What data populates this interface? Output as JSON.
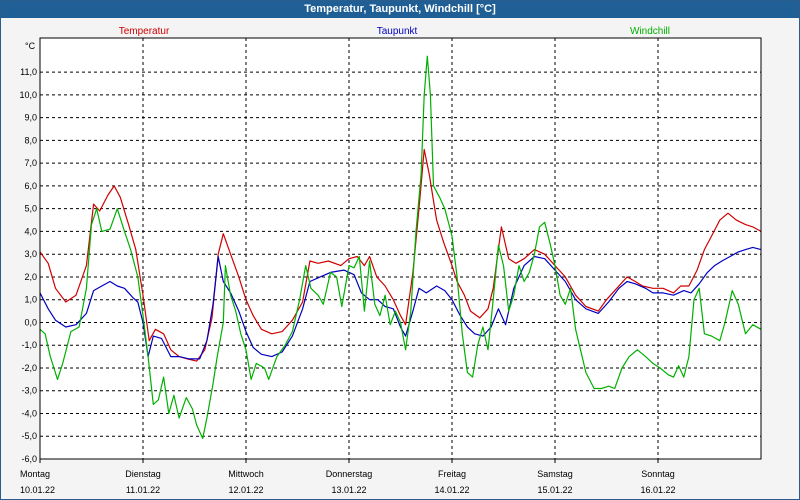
{
  "window": {
    "title": "Temperatur, Taupunkt, Windchill [°C]"
  },
  "chart_data": {
    "type": "line",
    "title": "Temperatur, Taupunkt, Windchill [°C]",
    "ylabel": "°C",
    "xlabel": "",
    "ylim": [
      -6.0,
      12.5
    ],
    "xlim": [
      0,
      7
    ],
    "grid": true,
    "y_ticks": [
      "-6,0",
      "-5,0",
      "-4,0",
      "-3,0",
      "-2,0",
      "-1,0",
      "0,0",
      "1,0",
      "2,0",
      "3,0",
      "4,0",
      "5,0",
      "6,0",
      "7,0",
      "8,0",
      "9,0",
      "10,0",
      "11,0"
    ],
    "y_tick_values": [
      -6,
      -5,
      -4,
      -3,
      -2,
      -1,
      0,
      1,
      2,
      3,
      4,
      5,
      6,
      7,
      8,
      9,
      10,
      11
    ],
    "x_ticks": [
      {
        "day": "Montag",
        "date": "10.01.22"
      },
      {
        "day": "Dienstag",
        "date": "11.01.22"
      },
      {
        "day": "Mittwoch",
        "date": "12.01.22"
      },
      {
        "day": "Donnerstag",
        "date": "13.01.22"
      },
      {
        "day": "Freitag",
        "date": "14.01.22"
      },
      {
        "day": "Samstag",
        "date": "15.01.22"
      },
      {
        "day": "Sonntag",
        "date": "16.01.22"
      }
    ],
    "series": [
      {
        "name": "Temperatur",
        "color": "#d00000",
        "points": [
          [
            0.0,
            3.1
          ],
          [
            0.08,
            2.6
          ],
          [
            0.15,
            1.5
          ],
          [
            0.25,
            0.9
          ],
          [
            0.35,
            1.2
          ],
          [
            0.45,
            2.5
          ],
          [
            0.52,
            5.2
          ],
          [
            0.58,
            4.9
          ],
          [
            0.66,
            5.6
          ],
          [
            0.72,
            6.0
          ],
          [
            0.78,
            5.5
          ],
          [
            0.86,
            4.3
          ],
          [
            0.93,
            3.2
          ],
          [
            1.0,
            1.2
          ],
          [
            1.06,
            -0.8
          ],
          [
            1.12,
            -0.3
          ],
          [
            1.2,
            -0.5
          ],
          [
            1.27,
            -1.2
          ],
          [
            1.35,
            -1.5
          ],
          [
            1.43,
            -1.6
          ],
          [
            1.52,
            -1.7
          ],
          [
            1.6,
            -1.2
          ],
          [
            1.67,
            0.2
          ],
          [
            1.73,
            3.0
          ],
          [
            1.78,
            3.9
          ],
          [
            1.85,
            3.0
          ],
          [
            1.93,
            2.0
          ],
          [
            2.0,
            1.0
          ],
          [
            2.07,
            0.3
          ],
          [
            2.15,
            -0.3
          ],
          [
            2.25,
            -0.5
          ],
          [
            2.35,
            -0.4
          ],
          [
            2.45,
            0.1
          ],
          [
            2.55,
            0.9
          ],
          [
            2.62,
            2.7
          ],
          [
            2.7,
            2.6
          ],
          [
            2.8,
            2.7
          ],
          [
            2.92,
            2.5
          ],
          [
            3.0,
            2.8
          ],
          [
            3.08,
            2.9
          ],
          [
            3.15,
            2.5
          ],
          [
            3.2,
            2.9
          ],
          [
            3.27,
            2.0
          ],
          [
            3.35,
            1.6
          ],
          [
            3.43,
            1.0
          ],
          [
            3.5,
            0.3
          ],
          [
            3.55,
            -0.1
          ],
          [
            3.62,
            2.2
          ],
          [
            3.68,
            5.0
          ],
          [
            3.73,
            7.6
          ],
          [
            3.78,
            6.5
          ],
          [
            3.85,
            4.5
          ],
          [
            3.92,
            3.5
          ],
          [
            4.0,
            2.5
          ],
          [
            4.05,
            1.8
          ],
          [
            4.12,
            1.2
          ],
          [
            4.18,
            0.5
          ],
          [
            4.27,
            0.2
          ],
          [
            4.35,
            0.6
          ],
          [
            4.4,
            1.5
          ],
          [
            4.48,
            4.2
          ],
          [
            4.55,
            2.8
          ],
          [
            4.62,
            2.6
          ],
          [
            4.7,
            2.8
          ],
          [
            4.8,
            3.2
          ],
          [
            4.9,
            3.0
          ],
          [
            5.0,
            2.5
          ],
          [
            5.1,
            2.0
          ],
          [
            5.2,
            1.2
          ],
          [
            5.3,
            0.7
          ],
          [
            5.42,
            0.5
          ],
          [
            5.5,
            1.0
          ],
          [
            5.6,
            1.5
          ],
          [
            5.7,
            2.0
          ],
          [
            5.78,
            1.8
          ],
          [
            5.85,
            1.6
          ],
          [
            5.95,
            1.5
          ],
          [
            6.05,
            1.5
          ],
          [
            6.15,
            1.3
          ],
          [
            6.22,
            1.6
          ],
          [
            6.3,
            1.6
          ],
          [
            6.38,
            2.3
          ],
          [
            6.45,
            3.2
          ],
          [
            6.52,
            3.8
          ],
          [
            6.6,
            4.5
          ],
          [
            6.68,
            4.8
          ],
          [
            6.76,
            4.5
          ],
          [
            6.85,
            4.3
          ],
          [
            6.92,
            4.2
          ],
          [
            7.0,
            4.0
          ]
        ]
      },
      {
        "name": "Taupunkt",
        "color": "#0000c0",
        "points": [
          [
            0.0,
            1.3
          ],
          [
            0.08,
            0.6
          ],
          [
            0.15,
            0.1
          ],
          [
            0.25,
            -0.2
          ],
          [
            0.35,
            -0.1
          ],
          [
            0.45,
            0.4
          ],
          [
            0.52,
            1.4
          ],
          [
            0.6,
            1.6
          ],
          [
            0.68,
            1.8
          ],
          [
            0.75,
            1.6
          ],
          [
            0.82,
            1.5
          ],
          [
            0.9,
            1.1
          ],
          [
            0.95,
            0.9
          ],
          [
            1.0,
            0.0
          ],
          [
            1.05,
            -1.5
          ],
          [
            1.1,
            -0.6
          ],
          [
            1.18,
            -0.7
          ],
          [
            1.27,
            -1.5
          ],
          [
            1.35,
            -1.5
          ],
          [
            1.45,
            -1.6
          ],
          [
            1.55,
            -1.6
          ],
          [
            1.62,
            -0.8
          ],
          [
            1.68,
            0.8
          ],
          [
            1.73,
            2.9
          ],
          [
            1.78,
            1.8
          ],
          [
            1.85,
            1.3
          ],
          [
            1.93,
            0.5
          ],
          [
            2.0,
            -0.4
          ],
          [
            2.07,
            -1.1
          ],
          [
            2.15,
            -1.4
          ],
          [
            2.25,
            -1.5
          ],
          [
            2.35,
            -1.3
          ],
          [
            2.45,
            -0.6
          ],
          [
            2.55,
            0.6
          ],
          [
            2.62,
            1.8
          ],
          [
            2.72,
            2.0
          ],
          [
            2.82,
            2.2
          ],
          [
            2.95,
            2.3
          ],
          [
            3.05,
            2.1
          ],
          [
            3.12,
            1.3
          ],
          [
            3.2,
            1.0
          ],
          [
            3.28,
            1.0
          ],
          [
            3.35,
            0.7
          ],
          [
            3.43,
            0.6
          ],
          [
            3.5,
            -0.2
          ],
          [
            3.55,
            -0.6
          ],
          [
            3.62,
            0.5
          ],
          [
            3.68,
            1.5
          ],
          [
            3.75,
            1.3
          ],
          [
            3.85,
            1.6
          ],
          [
            3.93,
            1.4
          ],
          [
            4.0,
            1.0
          ],
          [
            4.08,
            0.3
          ],
          [
            4.15,
            -0.2
          ],
          [
            4.22,
            -0.5
          ],
          [
            4.3,
            -0.6
          ],
          [
            4.38,
            -0.2
          ],
          [
            4.45,
            0.6
          ],
          [
            4.52,
            -0.1
          ],
          [
            4.6,
            1.5
          ],
          [
            4.7,
            2.5
          ],
          [
            4.8,
            2.9
          ],
          [
            4.9,
            2.8
          ],
          [
            5.0,
            2.3
          ],
          [
            5.1,
            1.8
          ],
          [
            5.2,
            1.0
          ],
          [
            5.3,
            0.6
          ],
          [
            5.42,
            0.4
          ],
          [
            5.52,
            0.9
          ],
          [
            5.62,
            1.5
          ],
          [
            5.7,
            1.8
          ],
          [
            5.78,
            1.7
          ],
          [
            5.88,
            1.5
          ],
          [
            5.95,
            1.3
          ],
          [
            6.05,
            1.3
          ],
          [
            6.15,
            1.2
          ],
          [
            6.25,
            1.4
          ],
          [
            6.32,
            1.3
          ],
          [
            6.4,
            1.7
          ],
          [
            6.48,
            2.2
          ],
          [
            6.55,
            2.5
          ],
          [
            6.62,
            2.7
          ],
          [
            6.7,
            2.9
          ],
          [
            6.78,
            3.1
          ],
          [
            6.85,
            3.2
          ],
          [
            6.92,
            3.3
          ],
          [
            7.0,
            3.2
          ]
        ]
      },
      {
        "name": "Windchill",
        "color": "#00b000",
        "points": [
          [
            0.0,
            -0.3
          ],
          [
            0.05,
            -0.5
          ],
          [
            0.1,
            -1.5
          ],
          [
            0.17,
            -2.5
          ],
          [
            0.22,
            -1.8
          ],
          [
            0.3,
            -0.4
          ],
          [
            0.38,
            -0.2
          ],
          [
            0.45,
            1.5
          ],
          [
            0.5,
            4.3
          ],
          [
            0.55,
            5.0
          ],
          [
            0.6,
            4.0
          ],
          [
            0.68,
            4.1
          ],
          [
            0.75,
            5.0
          ],
          [
            0.82,
            4.0
          ],
          [
            0.88,
            3.2
          ],
          [
            0.95,
            2.0
          ],
          [
            1.0,
            0.3
          ],
          [
            1.05,
            -1.5
          ],
          [
            1.1,
            -3.6
          ],
          [
            1.15,
            -3.4
          ],
          [
            1.2,
            -2.4
          ],
          [
            1.25,
            -4.0
          ],
          [
            1.3,
            -3.2
          ],
          [
            1.35,
            -4.2
          ],
          [
            1.42,
            -3.3
          ],
          [
            1.48,
            -3.8
          ],
          [
            1.52,
            -4.5
          ],
          [
            1.58,
            -5.1
          ],
          [
            1.62,
            -4.2
          ],
          [
            1.68,
            -2.7
          ],
          [
            1.72,
            -1.5
          ],
          [
            1.78,
            0.0
          ],
          [
            1.8,
            2.5
          ],
          [
            1.85,
            1.2
          ],
          [
            1.9,
            0.5
          ],
          [
            1.95,
            -0.5
          ],
          [
            2.0,
            -1.2
          ],
          [
            2.05,
            -2.5
          ],
          [
            2.1,
            -1.8
          ],
          [
            2.18,
            -2.0
          ],
          [
            2.22,
            -2.5
          ],
          [
            2.3,
            -1.5
          ],
          [
            2.38,
            -1.0
          ],
          [
            2.45,
            -0.4
          ],
          [
            2.52,
            1.0
          ],
          [
            2.58,
            2.5
          ],
          [
            2.63,
            1.5
          ],
          [
            2.7,
            1.2
          ],
          [
            2.75,
            0.8
          ],
          [
            2.82,
            2.2
          ],
          [
            2.88,
            2.0
          ],
          [
            2.93,
            0.7
          ],
          [
            3.0,
            2.5
          ],
          [
            3.05,
            2.4
          ],
          [
            3.1,
            2.9
          ],
          [
            3.15,
            0.5
          ],
          [
            3.2,
            2.7
          ],
          [
            3.25,
            0.8
          ],
          [
            3.3,
            0.3
          ],
          [
            3.35,
            1.2
          ],
          [
            3.4,
            -0.1
          ],
          [
            3.45,
            0.5
          ],
          [
            3.5,
            0.0
          ],
          [
            3.55,
            -1.2
          ],
          [
            3.6,
            0.5
          ],
          [
            3.65,
            4.0
          ],
          [
            3.7,
            6.5
          ],
          [
            3.73,
            10.0
          ],
          [
            3.76,
            11.7
          ],
          [
            3.79,
            10.0
          ],
          [
            3.82,
            6.0
          ],
          [
            3.88,
            5.5
          ],
          [
            3.93,
            5.0
          ],
          [
            4.0,
            3.8
          ],
          [
            4.05,
            2.0
          ],
          [
            4.1,
            -0.5
          ],
          [
            4.15,
            -2.2
          ],
          [
            4.2,
            -2.4
          ],
          [
            4.25,
            -1.0
          ],
          [
            4.3,
            -0.2
          ],
          [
            4.35,
            -1.2
          ],
          [
            4.4,
            1.0
          ],
          [
            4.45,
            3.4
          ],
          [
            4.5,
            2.5
          ],
          [
            4.55,
            0.5
          ],
          [
            4.6,
            1.2
          ],
          [
            4.65,
            2.5
          ],
          [
            4.7,
            1.8
          ],
          [
            4.75,
            2.2
          ],
          [
            4.8,
            3.0
          ],
          [
            4.85,
            4.2
          ],
          [
            4.9,
            4.4
          ],
          [
            4.95,
            3.5
          ],
          [
            5.0,
            2.5
          ],
          [
            5.05,
            1.2
          ],
          [
            5.1,
            0.8
          ],
          [
            5.15,
            1.5
          ],
          [
            5.2,
            -0.3
          ],
          [
            5.3,
            -2.2
          ],
          [
            5.38,
            -2.9
          ],
          [
            5.45,
            -2.9
          ],
          [
            5.52,
            -2.8
          ],
          [
            5.58,
            -2.9
          ],
          [
            5.65,
            -2.0
          ],
          [
            5.72,
            -1.5
          ],
          [
            5.8,
            -1.2
          ],
          [
            5.88,
            -1.5
          ],
          [
            5.95,
            -1.8
          ],
          [
            6.02,
            -2.0
          ],
          [
            6.1,
            -2.3
          ],
          [
            6.15,
            -2.4
          ],
          [
            6.2,
            -1.9
          ],
          [
            6.25,
            -2.4
          ],
          [
            6.3,
            -1.5
          ],
          [
            6.35,
            1.0
          ],
          [
            6.4,
            1.5
          ],
          [
            6.45,
            -0.5
          ],
          [
            6.52,
            -0.6
          ],
          [
            6.6,
            -0.8
          ],
          [
            6.65,
            0.0
          ],
          [
            6.72,
            1.4
          ],
          [
            6.78,
            0.8
          ],
          [
            6.85,
            -0.5
          ],
          [
            6.92,
            -0.1
          ],
          [
            7.0,
            -0.3
          ]
        ]
      }
    ]
  }
}
